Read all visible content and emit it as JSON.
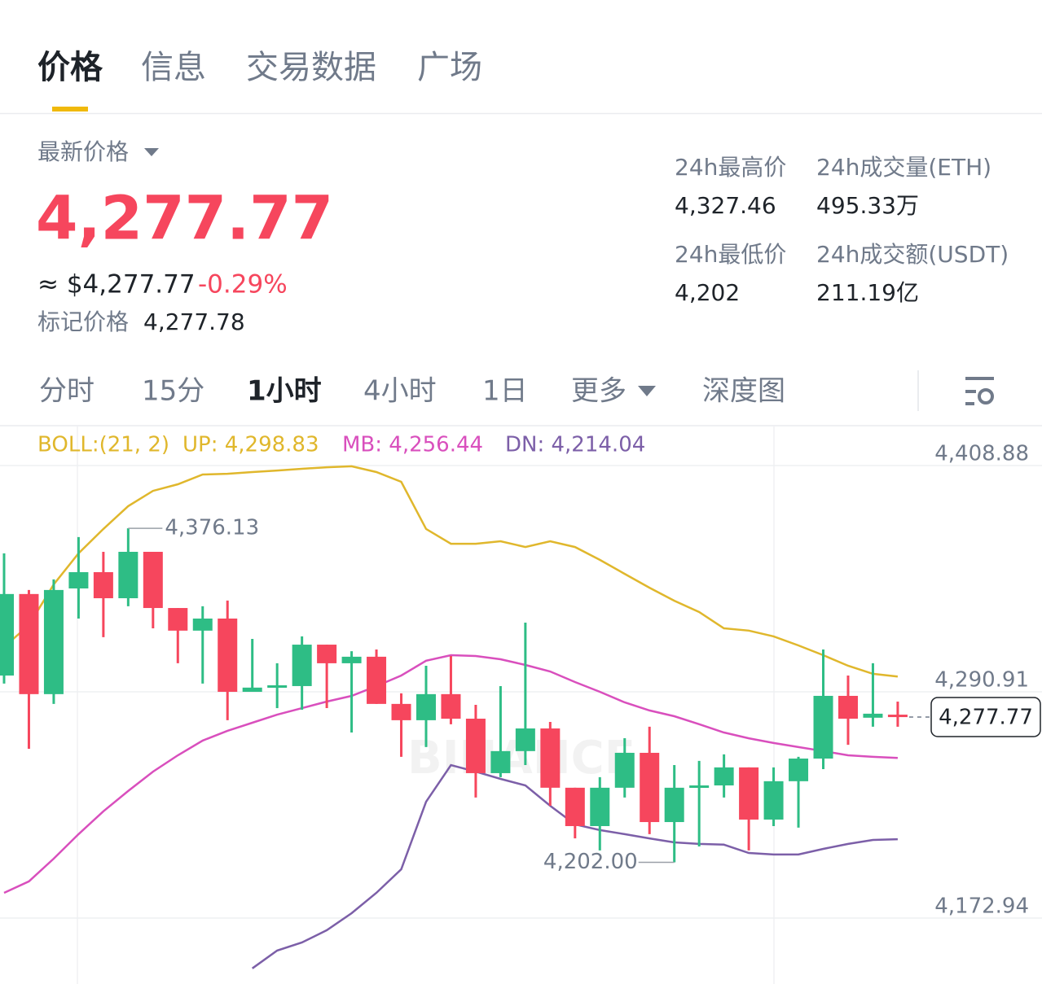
{
  "tabs": [
    "价格",
    "信息",
    "交易数据",
    "广场"
  ],
  "header": {
    "price_label": "最新价格",
    "price": "4,277.77",
    "usd_price": "≈ $4,277.77",
    "change": "-0.29%",
    "mark_label": "标记价格",
    "mark_price": "4,277.78"
  },
  "stats": [
    {
      "label": "24h最高价",
      "value": "4,327.46"
    },
    {
      "label": "24h成交量(ETH)",
      "value": "495.33万"
    },
    {
      "label": "24h最低价",
      "value": "4,202"
    },
    {
      "label": "24h成交额(USDT)",
      "value": "211.19亿"
    }
  ],
  "intervals": [
    "分时",
    "15分",
    "1小时",
    "4小时",
    "1日",
    "更多",
    "深度图"
  ],
  "chart_data": {
    "type": "candlestick",
    "indicator": "BOLL:(21, 2)",
    "watermark": "BINANCE",
    "up_color": "#2ebd85",
    "down_color": "#f6465d",
    "ylim": [
      4138.57,
      4429.67
    ],
    "yticks": [
      {
        "value": 4408.88,
        "label": "4,408.88"
      },
      {
        "value": 4290.91,
        "label": "4,290.91"
      },
      {
        "value": 4172.94,
        "label": "4,172.94"
      }
    ],
    "grid": true,
    "candles": [
      {
        "open": 4299.4,
        "high": 4363.1,
        "low": 4295.2,
        "close": 4341.9
      },
      {
        "open": 4341.9,
        "high": 4344.0,
        "low": 4261.2,
        "close": 4289.7
      },
      {
        "open": 4289.7,
        "high": 4349.5,
        "low": 4284.6,
        "close": 4344.0
      },
      {
        "open": 4344.8,
        "high": 4371.6,
        "low": 4329.1,
        "close": 4353.3
      },
      {
        "open": 4353.3,
        "high": 4363.9,
        "low": 4319.4,
        "close": 4339.7
      },
      {
        "open": 4339.7,
        "high": 4376.13,
        "low": 4335.5,
        "close": 4363.9
      },
      {
        "open": 4363.9,
        "high": 4363.9,
        "low": 4324.0,
        "close": 4334.6
      },
      {
        "open": 4334.6,
        "high": 4334.6,
        "low": 4305.8,
        "close": 4322.8
      },
      {
        "open": 4322.8,
        "high": 4335.5,
        "low": 4295.2,
        "close": 4329.1
      },
      {
        "open": 4329.1,
        "high": 4338.5,
        "low": 4276.1,
        "close": 4290.9
      },
      {
        "open": 4290.9,
        "high": 4318.5,
        "low": 4290.9,
        "close": 4293.1
      },
      {
        "open": 4293.9,
        "high": 4305.8,
        "low": 4282.4,
        "close": 4294.3
      },
      {
        "open": 4293.9,
        "high": 4319.8,
        "low": 4281.6,
        "close": 4315.5
      },
      {
        "open": 4315.5,
        "high": 4315.5,
        "low": 4282.4,
        "close": 4305.8
      },
      {
        "open": 4305.8,
        "high": 4312.1,
        "low": 4269.7,
        "close": 4309.2
      },
      {
        "open": 4309.2,
        "high": 4313.0,
        "low": 4284.6,
        "close": 4284.6
      },
      {
        "open": 4284.6,
        "high": 4290.1,
        "low": 4257.0,
        "close": 4276.1
      },
      {
        "open": 4276.1,
        "high": 4304.5,
        "low": 4262.1,
        "close": 4289.7
      },
      {
        "open": 4289.7,
        "high": 4309.6,
        "low": 4274.0,
        "close": 4276.9
      },
      {
        "open": 4276.9,
        "high": 4284.1,
        "low": 4235.8,
        "close": 4248.5
      },
      {
        "open": 4248.5,
        "high": 4293.9,
        "low": 4246.4,
        "close": 4260.0
      },
      {
        "open": 4260.0,
        "high": 4327.0,
        "low": 4252.7,
        "close": 4271.8
      },
      {
        "open": 4271.8,
        "high": 4275.2,
        "low": 4231.5,
        "close": 4240.9
      },
      {
        "open": 4240.9,
        "high": 4240.9,
        "low": 4214.5,
        "close": 4220.9
      },
      {
        "open": 4220.9,
        "high": 4246.4,
        "low": 4208.2,
        "close": 4240.9
      },
      {
        "open": 4240.9,
        "high": 4266.7,
        "low": 4235.8,
        "close": 4259.1
      },
      {
        "open": 4259.1,
        "high": 4272.7,
        "low": 4216.7,
        "close": 4223.0
      },
      {
        "open": 4223.0,
        "high": 4252.7,
        "low": 4202.0,
        "close": 4240.9
      },
      {
        "open": 4240.9,
        "high": 4254.9,
        "low": 4210.3,
        "close": 4242.1
      },
      {
        "open": 4242.1,
        "high": 4258.3,
        "low": 4235.8,
        "close": 4251.5
      },
      {
        "open": 4251.5,
        "high": 4251.5,
        "low": 4208.2,
        "close": 4224.3
      },
      {
        "open": 4224.3,
        "high": 4251.5,
        "low": 4220.9,
        "close": 4244.3
      },
      {
        "open": 4244.3,
        "high": 4257.0,
        "low": 4220.1,
        "close": 4256.1
      },
      {
        "open": 4256.1,
        "high": 4313.0,
        "low": 4250.6,
        "close": 4288.8
      },
      {
        "open": 4288.8,
        "high": 4299.4,
        "low": 4263.3,
        "close": 4276.9
      },
      {
        "open": 4277.4,
        "high": 4305.8,
        "low": 4272.7,
        "close": 4279.5
      },
      {
        "open": 4279.0,
        "high": 4285.8,
        "low": 4272.7,
        "close": 4277.77
      }
    ],
    "series": [
      {
        "name": "UP: 4,298.83",
        "color": "#e0b72c",
        "values": [
          4314.3,
          4325.7,
          4346.9,
          4363.1,
          4375.8,
          4387.7,
          4395.7,
          4399.1,
          4404.2,
          4404.6,
          4405.5,
          4406.3,
          4407.2,
          4408.0,
          4408.5,
          4405.5,
          4400.4,
          4375.8,
          4368.1,
          4368.1,
          4369.4,
          4366.4,
          4369.4,
          4366.4,
          4359.7,
          4352.4,
          4345.2,
          4338.4,
          4332.5,
          4324.0,
          4322.8,
          4319.8,
          4315.1,
          4310.0,
          4304.5,
          4300.3,
          4298.83
        ]
      },
      {
        "name": "MB: 4,256.44",
        "color": "#d94fbd",
        "values": [
          4186.1,
          4192.1,
          4203.9,
          4216.7,
          4228.6,
          4239.2,
          4249.3,
          4257.8,
          4265.5,
          4270.6,
          4274.8,
          4279.0,
          4282.4,
          4285.8,
          4288.8,
          4293.9,
          4299.4,
          4307.1,
          4310.0,
          4309.6,
          4307.9,
          4304.9,
          4301.5,
          4296.0,
          4290.9,
          4285.4,
          4281.2,
          4278.2,
          4274.0,
          4269.7,
          4266.7,
          4264.2,
          4262.1,
          4260.0,
          4257.8,
          4257.0,
          4256.44
        ]
      },
      {
        "name": "DN: 4,214.04",
        "color": "#7c5fa8",
        "values": [
          null,
          null,
          null,
          null,
          null,
          null,
          null,
          null,
          null,
          null,
          4146.7,
          4156.0,
          4160.2,
          4166.6,
          4175.5,
          4186.1,
          4198.4,
          4233.6,
          4252.7,
          4249.3,
          4245.5,
          4242.1,
          4231.5,
          4221.8,
          4218.8,
          4216.7,
          4214.5,
          4212.4,
          4211.6,
          4211.2,
          4206.9,
          4206.1,
          4206.1,
          4209.0,
          4211.6,
          4213.7,
          4214.04
        ]
      }
    ],
    "annotations": [
      {
        "candle": 5,
        "value": 4376.13,
        "label": "4,376.13"
      },
      {
        "candle": 27,
        "value": 4202.0,
        "label": "4,202.00"
      }
    ],
    "last_price": {
      "value": 4277.77,
      "label": "4,277.77"
    }
  }
}
